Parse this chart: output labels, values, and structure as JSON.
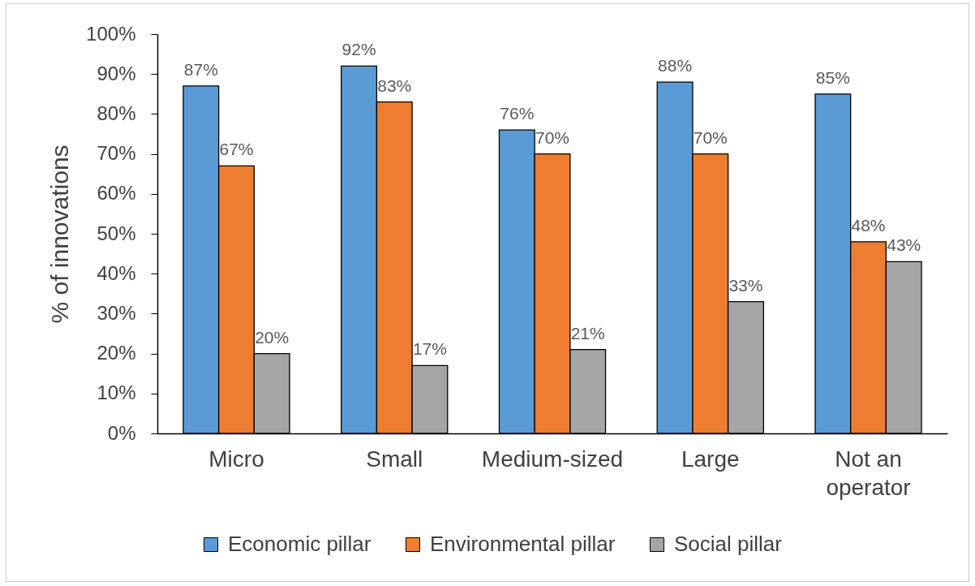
{
  "chart_data": {
    "type": "bar",
    "categories": [
      "Micro",
      "Small",
      "Medium-sized",
      "Large",
      "Not an operator"
    ],
    "ylabel": "% of innovations",
    "ylim": [
      0,
      100
    ],
    "yticks": [
      {
        "value": 0,
        "label": "0%"
      },
      {
        "value": 10,
        "label": "10%"
      },
      {
        "value": 20,
        "label": "20%"
      },
      {
        "value": 30,
        "label": "30%"
      },
      {
        "value": 40,
        "label": "40%"
      },
      {
        "value": 50,
        "label": "50%"
      },
      {
        "value": 60,
        "label": "60%"
      },
      {
        "value": 70,
        "label": "70%"
      },
      {
        "value": 80,
        "label": "80%"
      },
      {
        "value": 90,
        "label": "90%"
      },
      {
        "value": 100,
        "label": "100%"
      }
    ],
    "legend": "bottom",
    "series": [
      {
        "name": "Economic pillar",
        "color": "#5b9bd5",
        "values": [
          87,
          92,
          76,
          88,
          85
        ],
        "value_labels": [
          "87%",
          "92%",
          "76%",
          "88%",
          "85%"
        ]
      },
      {
        "name": "Environmental pillar",
        "color": "#ed7d31",
        "values": [
          67,
          83,
          70,
          70,
          48
        ],
        "value_labels": [
          "67%",
          "83%",
          "70%",
          "70%",
          "48%"
        ]
      },
      {
        "name": "Social pillar",
        "color": "#a5a5a5",
        "values": [
          20,
          17,
          21,
          33,
          43
        ],
        "value_labels": [
          "20%",
          "17%",
          "21%",
          "33%",
          "43%"
        ]
      }
    ]
  }
}
